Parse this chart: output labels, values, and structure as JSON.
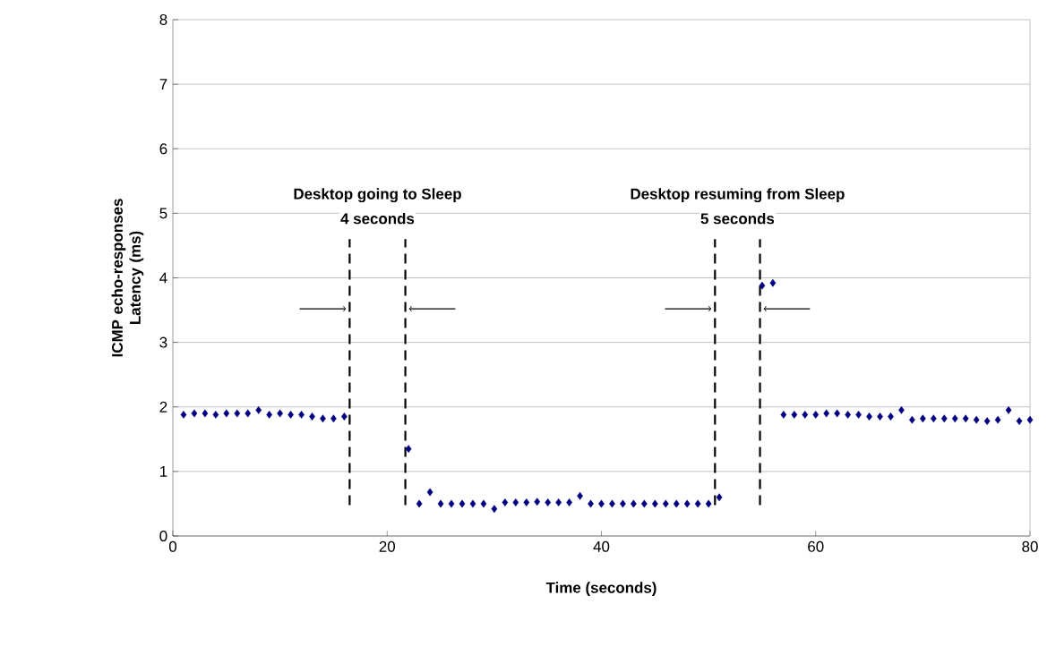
{
  "chart_data": {
    "type": "scatter",
    "xlabel": "Time (seconds)",
    "ylabel": "ICMP echo-responses Latency (ms)",
    "xlim": [
      0,
      80
    ],
    "ylim": [
      0,
      8
    ],
    "xticks": [
      0,
      20,
      40,
      60,
      80
    ],
    "yticks": [
      0,
      1,
      2,
      3,
      4,
      5,
      6,
      7,
      8
    ],
    "grid": "y",
    "marker": "diamond",
    "series": [
      {
        "color": "#000080",
        "x": [
          1,
          2,
          3,
          4,
          5,
          6,
          7,
          8,
          9,
          10,
          11,
          12,
          13,
          14,
          15,
          16,
          22,
          23,
          24,
          25,
          26,
          27,
          28,
          29,
          30,
          31,
          32,
          33,
          34,
          35,
          36,
          37,
          38,
          39,
          40,
          41,
          42,
          43,
          44,
          45,
          46,
          47,
          48,
          49,
          50,
          51,
          55,
          56,
          57,
          58,
          59,
          60,
          61,
          62,
          63,
          64,
          65,
          66,
          67,
          68,
          69,
          70,
          71,
          72,
          73,
          74,
          75,
          76,
          77,
          78,
          79,
          80
        ],
        "values": [
          1.88,
          1.9,
          1.9,
          1.88,
          1.9,
          1.9,
          1.9,
          1.95,
          1.88,
          1.9,
          1.88,
          1.88,
          1.85,
          1.82,
          1.82,
          1.85,
          1.35,
          0.5,
          0.68,
          0.5,
          0.5,
          0.5,
          0.5,
          0.5,
          0.42,
          0.52,
          0.52,
          0.52,
          0.53,
          0.52,
          0.52,
          0.52,
          0.62,
          0.5,
          0.5,
          0.5,
          0.5,
          0.5,
          0.5,
          0.5,
          0.5,
          0.5,
          0.5,
          0.5,
          0.5,
          0.6,
          3.88,
          3.92,
          1.88,
          1.88,
          1.88,
          1.88,
          1.9,
          1.9,
          1.88,
          1.88,
          1.85,
          1.85,
          1.85,
          1.95,
          1.8,
          1.82,
          1.82,
          1.82,
          1.82,
          1.82,
          1.8,
          1.78,
          1.8,
          1.95,
          1.78,
          1.8
        ]
      }
    ],
    "ref_lines": [
      {
        "axis": "x",
        "value": 16.5,
        "color": "#000000",
        "line_style": "dashed"
      },
      {
        "axis": "x",
        "value": 21.7,
        "color": "#000000",
        "line_style": "dashed"
      },
      {
        "axis": "x",
        "value": 50.6,
        "color": "#000000",
        "line_style": "dashed"
      },
      {
        "axis": "x",
        "value": 54.8,
        "color": "#000000",
        "line_style": "dashed"
      }
    ],
    "annotations": [
      "Desktop going to Sleep",
      "4 seconds",
      "Desktop resuming from Sleep",
      "5 seconds"
    ]
  }
}
